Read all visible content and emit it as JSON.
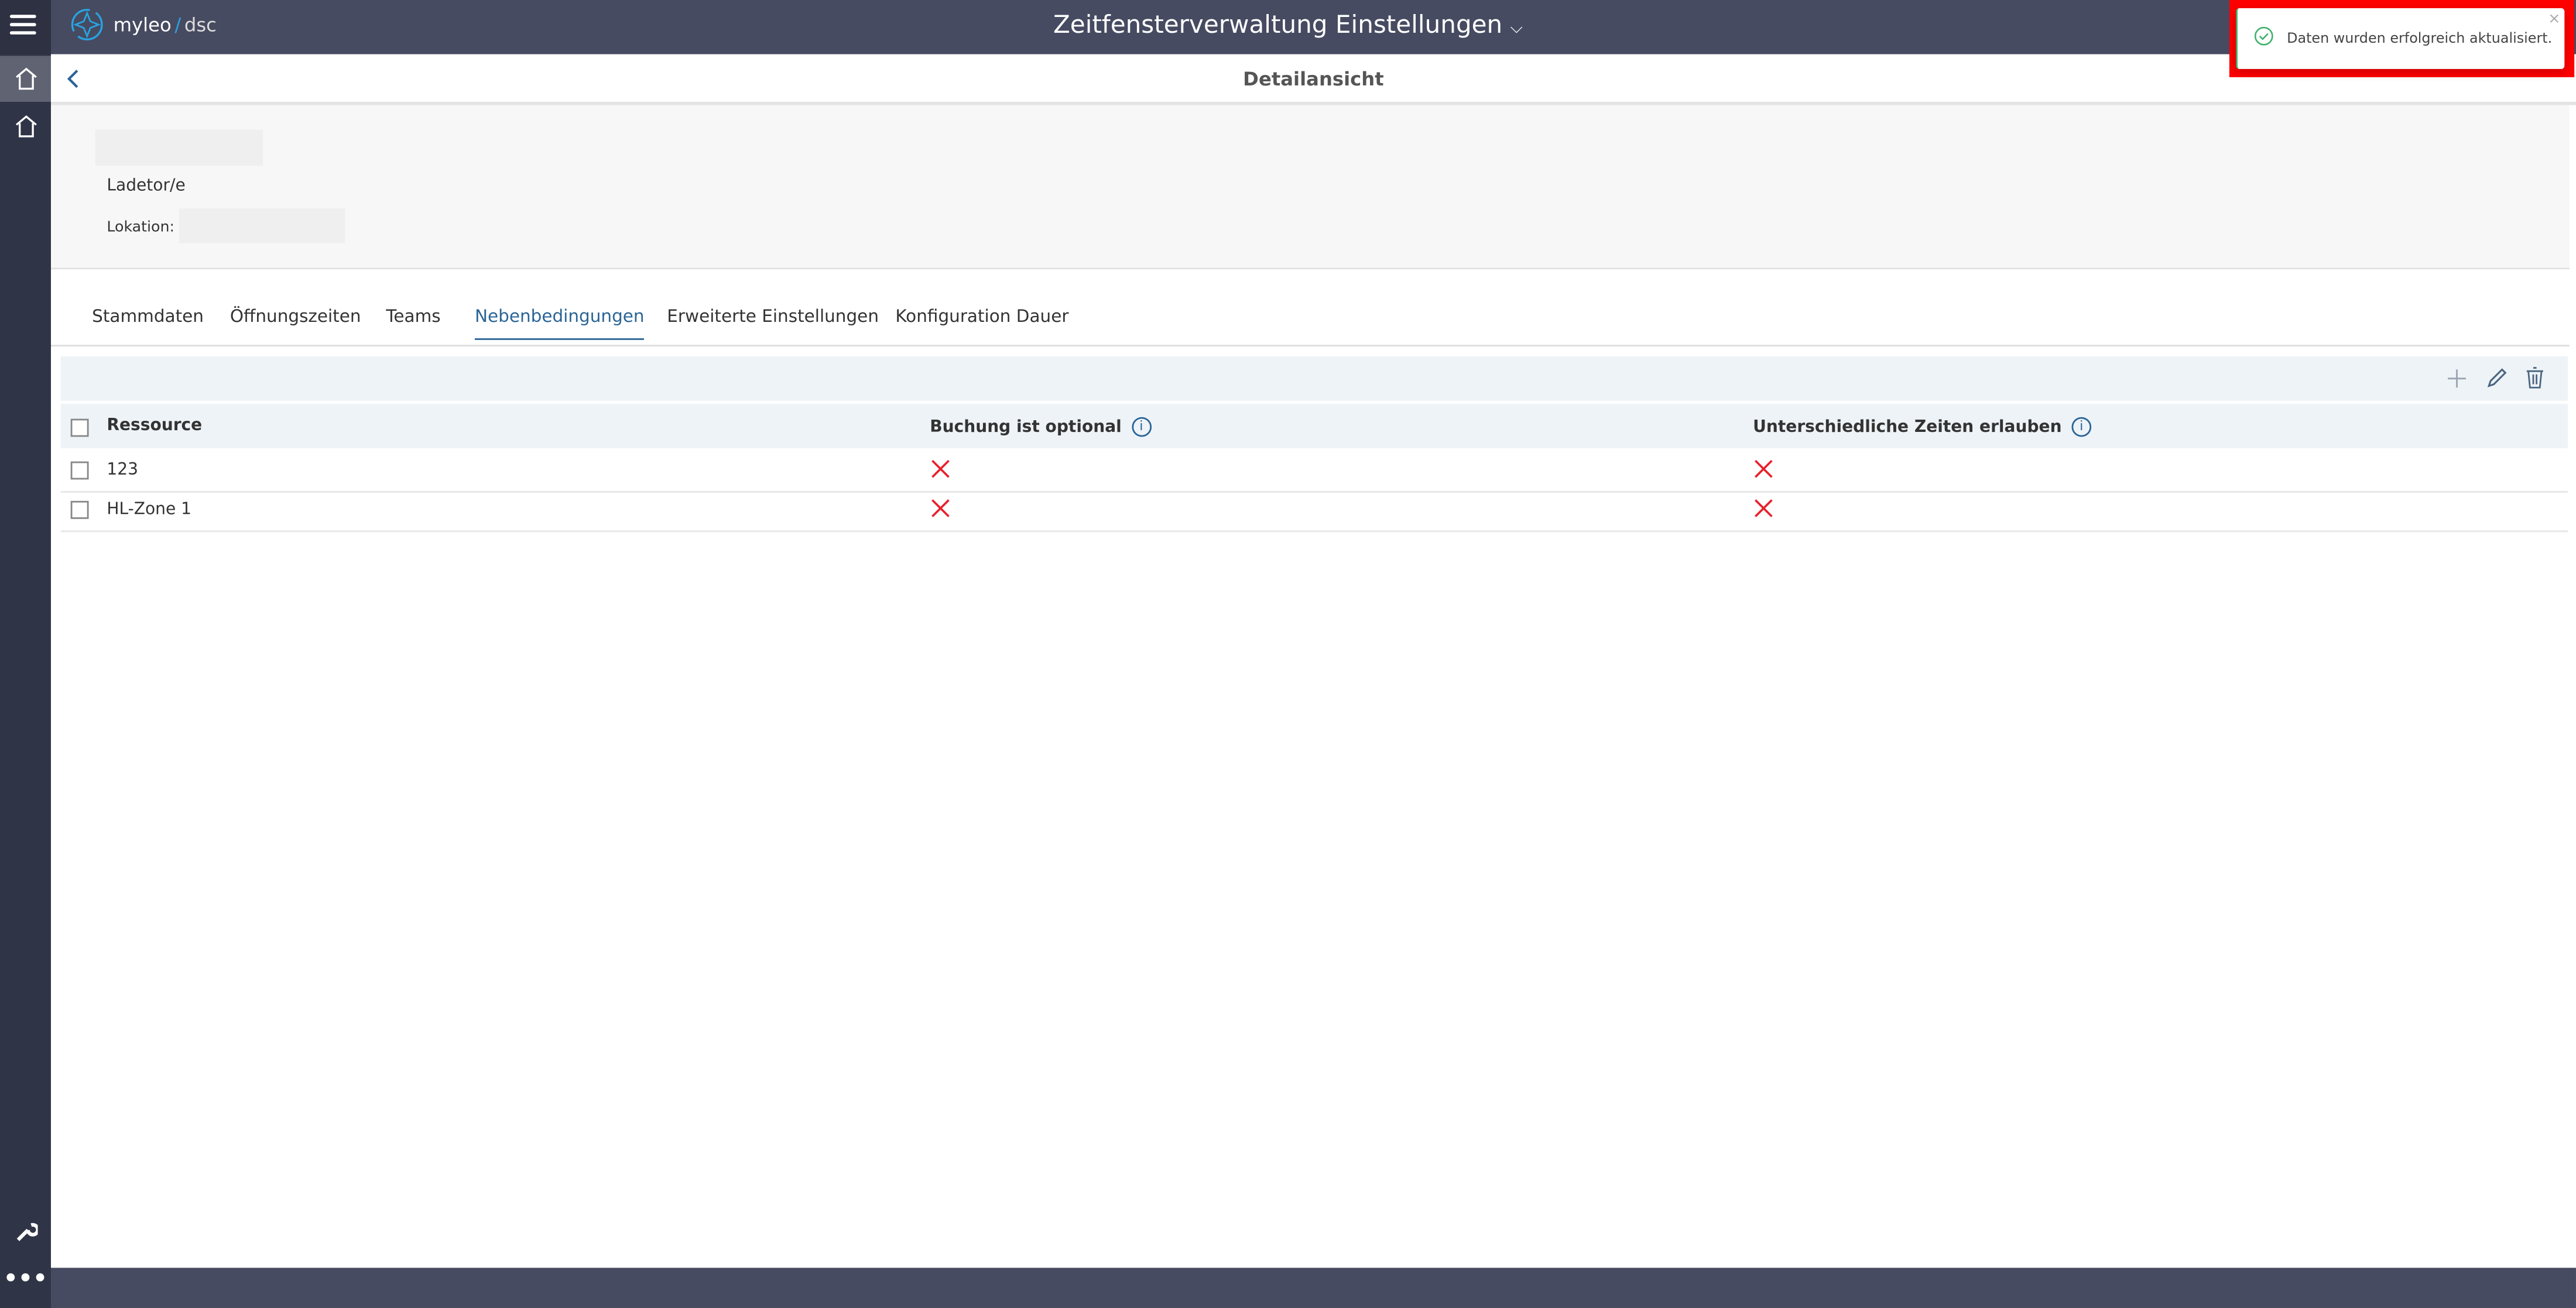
{
  "header": {
    "app_name": "myleo",
    "app_suffix": "dsc",
    "title": "Zeitfensterverwaltung Einstellungen"
  },
  "detail": {
    "title": "Detailansicht",
    "type_label": "Ladetor/e",
    "location_label": "Lokation:"
  },
  "tabs": [
    {
      "label": "Stammdaten"
    },
    {
      "label": "Öffnungszeiten"
    },
    {
      "label": "Teams"
    },
    {
      "label": "Nebenbedingungen",
      "active": true
    },
    {
      "label": "Erweiterte Einstellungen"
    },
    {
      "label": "Konfiguration Dauer"
    }
  ],
  "table": {
    "columns": [
      "Ressource",
      "Buchung ist optional",
      "Unterschiedliche Zeiten erlauben"
    ],
    "rows": [
      {
        "resource": "123",
        "optional": false,
        "different_times": false
      },
      {
        "resource": "HL-Zone 1",
        "optional": false,
        "different_times": false
      }
    ]
  },
  "toast": {
    "message": "Daten wurden erfolgreich aktualisiert.",
    "status": "success"
  },
  "colors": {
    "header": "#464b61",
    "sidebar": "#2f3447",
    "accent": "#2a6496",
    "false_mark": "#e8202a",
    "success": "#3bb06a",
    "highlight": "#ff0000"
  }
}
